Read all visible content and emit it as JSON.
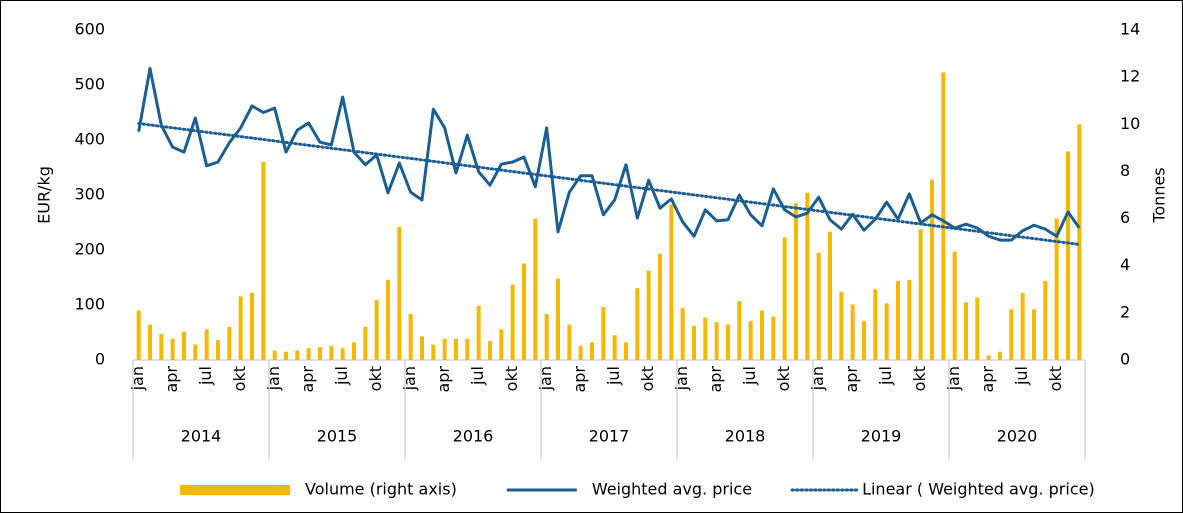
{
  "chart_data": {
    "type": "combo",
    "ylabel": "EUR/kg",
    "y2label": "Tonnes",
    "ylim": [
      0,
      600
    ],
    "yticks": [
      0,
      100,
      200,
      300,
      400,
      500,
      600
    ],
    "y2lim": [
      0,
      14
    ],
    "y2ticks": [
      0,
      2,
      4,
      6,
      8,
      10,
      12,
      14
    ],
    "categories": [
      "jan",
      null,
      null,
      "apr",
      null,
      null,
      "jul",
      null,
      null,
      "okt",
      null,
      null,
      "jan",
      null,
      null,
      "apr",
      null,
      null,
      "jul",
      null,
      null,
      "okt",
      null,
      null,
      "jan",
      null,
      null,
      "apr",
      null,
      null,
      "jul",
      null,
      null,
      "okt",
      null,
      null,
      "jan",
      null,
      null,
      "apr",
      null,
      null,
      "jul",
      null,
      null,
      "okt",
      null,
      null,
      "jan",
      null,
      null,
      "apr",
      null,
      null,
      "jul",
      null,
      null,
      "okt",
      null,
      null,
      "jan",
      null,
      null,
      "apr",
      null,
      null,
      "jul",
      null,
      null,
      "okt",
      null,
      null,
      "jan",
      null,
      null,
      "apr",
      null,
      null,
      "jul",
      null,
      null,
      "okt",
      null,
      null
    ],
    "year_groups": [
      "2014",
      "2015",
      "2016",
      "2017",
      "2018",
      "2019",
      "2020"
    ],
    "series": [
      {
        "name": "Volume (right axis)",
        "type": "bar",
        "axis": "y2",
        "color": "#f5b800",
        "values": [
          2.1,
          1.5,
          1.1,
          0.9,
          1.2,
          0.65,
          1.3,
          0.85,
          1.4,
          2.7,
          2.85,
          8.4,
          0.4,
          0.35,
          0.4,
          0.5,
          0.55,
          0.6,
          0.5,
          0.75,
          1.4,
          2.55,
          3.4,
          5.65,
          1.95,
          1.0,
          0.65,
          0.9,
          0.9,
          0.9,
          2.3,
          0.8,
          1.3,
          3.2,
          4.1,
          6.0,
          1.95,
          3.45,
          1.5,
          0.6,
          0.75,
          2.25,
          1.05,
          0.75,
          3.05,
          3.8,
          4.5,
          6.6,
          2.2,
          1.45,
          1.8,
          1.6,
          1.5,
          2.5,
          1.65,
          2.1,
          1.85,
          5.2,
          6.65,
          7.1,
          4.55,
          5.45,
          2.9,
          2.35,
          1.65,
          3.0,
          2.4,
          3.35,
          3.4,
          5.55,
          7.65,
          12.2,
          4.6,
          2.45,
          2.65,
          0.2,
          0.35,
          2.15,
          2.85,
          2.15,
          3.35,
          6.0,
          8.85,
          10.0
        ]
      },
      {
        "name": "Weighted avg. price",
        "type": "line",
        "color": "#1b5e94",
        "trendline": {
          "name": "Linear ( Weighted avg. price)",
          "type": "linear",
          "style": "dotted"
        },
        "values": [
          415,
          530,
          427,
          387,
          378,
          440,
          353,
          360,
          395,
          422,
          462,
          450,
          458,
          378,
          418,
          431,
          396,
          391,
          478,
          378,
          355,
          373,
          304,
          358,
          305,
          291,
          456,
          422,
          340,
          409,
          342,
          318,
          356,
          360,
          369,
          315,
          422,
          233,
          305,
          335,
          335,
          264,
          291,
          355,
          258,
          327,
          276,
          293,
          251,
          225,
          273,
          253,
          255,
          300,
          264,
          244,
          311,
          273,
          260,
          267,
          296,
          255,
          238,
          265,
          236,
          256,
          287,
          256,
          302,
          249,
          264,
          253,
          240,
          247,
          240,
          225,
          218,
          218,
          235,
          245,
          238,
          225,
          269,
          240
        ]
      }
    ]
  }
}
